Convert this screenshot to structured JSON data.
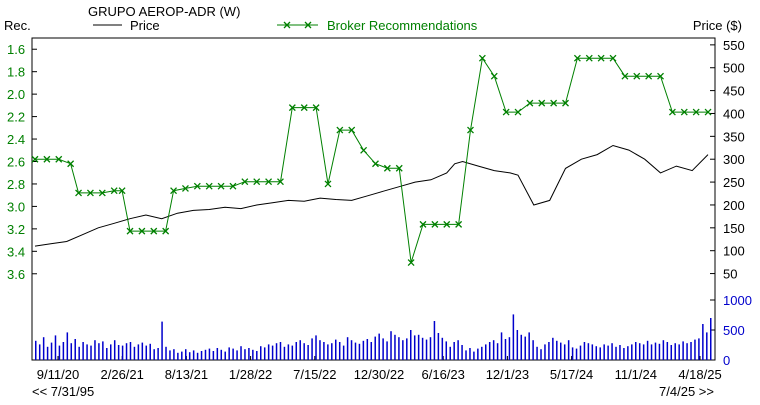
{
  "chart_data": {
    "type": "line",
    "title": "GRUPO AEROP-ADR (W)",
    "left_axis_label": "Rec.",
    "right_axis_label": "Price ($)",
    "legend": [
      {
        "name": "Price",
        "color": "#000000",
        "marker": "none"
      },
      {
        "name": "Broker Recommendations",
        "color": "#008000",
        "marker": "x"
      }
    ],
    "x_ticks": [
      "9/11/20",
      "2/26/21",
      "8/13/21",
      "1/28/22",
      "7/15/22",
      "12/30/22",
      "6/16/23",
      "12/1/23",
      "5/17/24",
      "11/1/24",
      "4/18/25"
    ],
    "range_start_label": "<< 7/31/95",
    "range_end_label": "7/4/25 >>",
    "rec_axis": {
      "ticks": [
        "1.6",
        "1.8",
        "2.0",
        "2.2",
        "2.4",
        "2.6",
        "2.8",
        "3.0",
        "3.2",
        "3.4",
        "3.6"
      ],
      "range": [
        1.5,
        3.7
      ],
      "inverted": true
    },
    "price_axis": {
      "ticks": [
        "550",
        "500",
        "450",
        "400",
        "350",
        "300",
        "250",
        "200",
        "150",
        "100",
        "50"
      ],
      "range": [
        25,
        565
      ]
    },
    "volume_axis": {
      "ticks": [
        "1000",
        "500",
        "0"
      ],
      "range": [
        0,
        1000
      ]
    },
    "grid": false,
    "price": {
      "name": "Price",
      "x": [
        0,
        4,
        8,
        12,
        16,
        20,
        24,
        28,
        32,
        36,
        40,
        44,
        48,
        52,
        56,
        60,
        64,
        68,
        72,
        76,
        80,
        84,
        88,
        92,
        96,
        100,
        104,
        106,
        108,
        112,
        116,
        120,
        122,
        126,
        130,
        134,
        138,
        142,
        146,
        150,
        154,
        158,
        162,
        166,
        170
      ],
      "values": [
        110,
        115,
        120,
        135,
        150,
        160,
        170,
        178,
        170,
        182,
        188,
        190,
        195,
        192,
        200,
        205,
        210,
        208,
        215,
        212,
        210,
        220,
        230,
        240,
        250,
        255,
        270,
        290,
        295,
        285,
        275,
        270,
        265,
        200,
        210,
        280,
        300,
        310,
        330,
        320,
        300,
        270,
        285,
        275,
        310
      ]
    },
    "recommendations": {
      "name": "Broker Recommendations",
      "x": [
        0,
        3,
        6,
        9,
        11,
        14,
        17,
        20,
        22,
        24,
        27,
        30,
        33,
        35,
        38,
        41,
        44,
        47,
        50,
        53,
        56,
        59,
        62,
        65,
        68,
        71,
        74,
        77,
        80,
        83,
        86,
        89,
        92,
        95,
        98,
        101,
        104,
        107,
        110,
        113,
        116,
        119,
        122,
        125,
        128,
        131,
        134,
        137,
        140,
        143,
        146,
        149,
        152,
        155,
        158,
        161,
        164,
        167,
        170
      ],
      "values": [
        2.58,
        2.58,
        2.58,
        2.62,
        2.88,
        2.88,
        2.88,
        2.86,
        2.86,
        3.22,
        3.22,
        3.22,
        3.22,
        2.86,
        2.84,
        2.82,
        2.82,
        2.82,
        2.82,
        2.78,
        2.78,
        2.78,
        2.78,
        2.12,
        2.12,
        2.12,
        2.8,
        2.32,
        2.32,
        2.5,
        2.62,
        2.66,
        2.66,
        3.5,
        3.16,
        3.16,
        3.16,
        3.16,
        2.32,
        1.68,
        1.84,
        2.16,
        2.16,
        2.08,
        2.08,
        2.08,
        2.08,
        1.68,
        1.68,
        1.68,
        1.68,
        1.84,
        1.84,
        1.84,
        1.84,
        2.16,
        2.16,
        2.16,
        2.16
      ]
    },
    "volume": [
      320,
      260,
      380,
      220,
      290,
      410,
      240,
      300,
      460,
      280,
      350,
      220,
      300,
      260,
      240,
      330,
      280,
      310,
      200,
      260,
      330,
      250,
      240,
      280,
      300,
      220,
      260,
      290,
      240,
      270,
      180,
      200,
      640,
      220,
      160,
      180,
      120,
      140,
      180,
      130,
      160,
      120,
      150,
      170,
      190,
      150,
      200,
      170,
      140,
      210,
      190,
      160,
      230,
      180,
      200,
      170,
      150,
      230,
      210,
      260,
      240,
      280,
      300,
      220,
      260,
      240,
      300,
      330,
      280,
      250,
      360,
      410,
      330,
      300,
      260,
      280,
      340,
      300,
      240,
      380,
      330,
      290,
      270,
      320,
      350,
      300,
      390,
      440,
      360,
      310,
      480,
      420,
      380,
      330,
      360,
      500,
      410,
      420,
      370,
      340,
      380,
      650,
      450,
      370,
      310,
      220,
      300,
      330,
      250,
      160,
      200,
      140,
      190,
      220,
      260,
      300,
      330,
      280,
      460,
      350,
      380,
      760,
      500,
      420,
      390,
      460,
      330,
      220,
      180,
      260,
      300,
      370,
      320,
      290,
      260,
      330,
      210,
      190,
      240,
      300,
      280,
      260,
      230,
      210,
      260,
      240,
      280,
      220,
      250,
      200,
      230,
      260,
      300,
      280,
      260,
      320,
      260,
      290,
      270,
      330,
      300,
      250,
      280,
      260,
      310,
      280,
      300,
      340,
      360,
      600,
      460,
      700
    ]
  }
}
